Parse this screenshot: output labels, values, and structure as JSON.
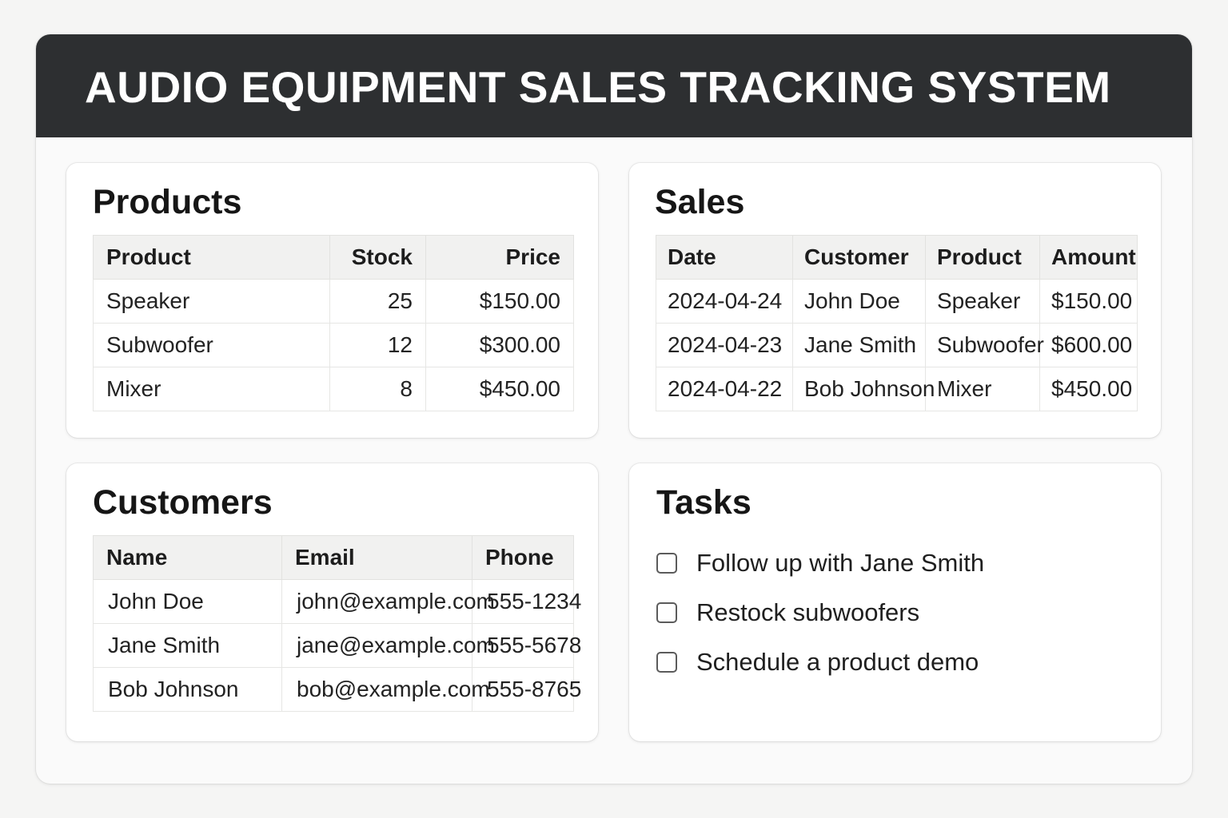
{
  "header": {
    "title": "AUDIO EQUIPMENT SALES TRACKING SYSTEM"
  },
  "products": {
    "title": "Products",
    "columns": [
      "Product",
      "Stock",
      "Price"
    ],
    "rows": [
      {
        "product": "Speaker",
        "stock": "25",
        "price": "$150.00"
      },
      {
        "product": "Subwoofer",
        "stock": "12",
        "price": "$300.00"
      },
      {
        "product": "Mixer",
        "stock": "8",
        "price": "$450.00"
      }
    ]
  },
  "sales": {
    "title": "Sales",
    "columns": [
      "Date",
      "Customer",
      "Product",
      "Amount"
    ],
    "rows": [
      {
        "date": "2024-04-24",
        "customer": "John Doe",
        "product": "Speaker",
        "amount": "$150.00"
      },
      {
        "date": "2024-04-23",
        "customer": "Jane Smith",
        "product": "Subwoofer",
        "amount": "$600.00"
      },
      {
        "date": "2024-04-22",
        "customer": "Bob Johnson",
        "product": "Mixer",
        "amount": "$450.00"
      }
    ]
  },
  "customers": {
    "title": "Customers",
    "columns": [
      "Name",
      "Email",
      "Phone"
    ],
    "rows": [
      {
        "name": "John Doe",
        "email": "john@example.com",
        "phone": "555-1234"
      },
      {
        "name": "Jane Smith",
        "email": "jane@example.com",
        "phone": "555-5678"
      },
      {
        "name": "Bob Johnson",
        "email": "bob@example.com",
        "phone": "555-8765"
      }
    ]
  },
  "tasks": {
    "title": "Tasks",
    "items": [
      {
        "label": "Follow up with Jane Smith",
        "checked": false
      },
      {
        "label": "Restock subwoofers",
        "checked": false
      },
      {
        "label": "Schedule a product demo",
        "checked": false
      }
    ]
  },
  "colors": {
    "header_bg": "#2d2f31",
    "page_bg": "#f5f5f4",
    "card_bg": "#ffffff",
    "table_header_bg": "#f1f1f0"
  }
}
